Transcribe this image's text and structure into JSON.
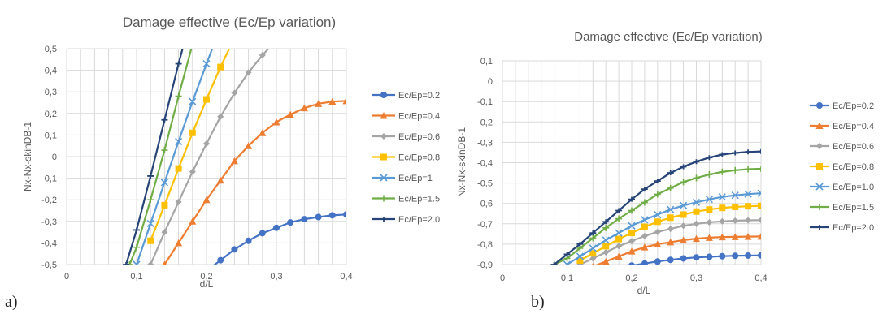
{
  "panel_labels": [
    "a)",
    "b)"
  ],
  "chart_data": [
    {
      "type": "line",
      "title": "Damage effective (Ec/Ep variation)",
      "xlabel": "d/L",
      "ylabel": "Nx-Nx-skinDB-1",
      "xlim": [
        0,
        0.4
      ],
      "ylim": [
        -0.5,
        0.5
      ],
      "x_ticks": [
        0,
        0.1,
        0.2,
        0.3,
        0.4
      ],
      "x_tick_labels": [
        "0",
        "0,1",
        "0,2",
        "0,3",
        "0,4"
      ],
      "y_ticks": [
        -0.5,
        -0.4,
        -0.3,
        -0.2,
        -0.1,
        0,
        0.1,
        0.2,
        0.3,
        0.4,
        0.5
      ],
      "y_tick_labels": [
        "-0,5",
        "-0,4",
        "-0,3",
        "-0,2",
        "-0,1",
        "0",
        "0,1",
        "0,2",
        "0,3",
        "0,4",
        "0,5"
      ],
      "grid": "both",
      "legend": "right",
      "series": [
        {
          "name": "Ec/Ep=0.2",
          "color": "#4472C4",
          "marker": "circle",
          "x": [
            0.2,
            0.22,
            0.24,
            0.26,
            0.28,
            0.3,
            0.32,
            0.34,
            0.36,
            0.38,
            0.4
          ],
          "y": [
            -0.53,
            -0.48,
            -0.43,
            -0.39,
            -0.355,
            -0.33,
            -0.305,
            -0.29,
            -0.28,
            -0.272,
            -0.268
          ]
        },
        {
          "name": "Ec/Ep=0.4",
          "color": "#ED7D31",
          "marker": "triangle",
          "x": [
            0.14,
            0.16,
            0.18,
            0.2,
            0.22,
            0.24,
            0.26,
            0.28,
            0.3,
            0.32,
            0.34,
            0.36,
            0.38,
            0.4
          ],
          "y": [
            -0.5,
            -0.4,
            -0.3,
            -0.2,
            -0.11,
            -0.02,
            0.05,
            0.11,
            0.16,
            0.195,
            0.225,
            0.245,
            0.255,
            0.258
          ]
        },
        {
          "name": "Ec/Ep=0.6",
          "color": "#A5A5A5",
          "marker": "diamond",
          "x": [
            0.12,
            0.14,
            0.16,
            0.18,
            0.2,
            0.22,
            0.24,
            0.26,
            0.28,
            0.3
          ],
          "y": [
            -0.5,
            -0.35,
            -0.21,
            -0.07,
            0.06,
            0.185,
            0.295,
            0.39,
            0.47,
            0.54
          ]
        },
        {
          "name": "Ec/Ep=0.8",
          "color": "#FFC000",
          "marker": "square",
          "x": [
            0.12,
            0.14,
            0.16,
            0.18,
            0.2,
            0.22,
            0.24
          ],
          "y": [
            -0.39,
            -0.225,
            -0.055,
            0.11,
            0.265,
            0.415,
            0.55
          ]
        },
        {
          "name": "Ec/Ep=1",
          "color": "#5B9BD5",
          "marker": "x",
          "x": [
            0.1,
            0.12,
            0.14,
            0.16,
            0.18,
            0.2,
            0.22
          ],
          "y": [
            -0.5,
            -0.31,
            -0.12,
            0.07,
            0.255,
            0.43,
            0.6
          ]
        },
        {
          "name": "Ec/Ep=1.5",
          "color": "#70AD47",
          "marker": "plus",
          "x": [
            0.09,
            0.1,
            0.12,
            0.14,
            0.16,
            0.18
          ],
          "y": [
            -0.5,
            -0.42,
            -0.2,
            0.03,
            0.28,
            0.52
          ]
        },
        {
          "name": "Ec/Ep=2.0",
          "color": "#264478",
          "marker": "dash",
          "x": [
            0.085,
            0.1,
            0.12,
            0.14,
            0.16,
            0.17
          ],
          "y": [
            -0.5,
            -0.34,
            -0.09,
            0.17,
            0.43,
            0.55
          ]
        }
      ]
    },
    {
      "type": "line",
      "title": "Damage effective (Ec/Ep variation)",
      "xlabel": "d/L",
      "ylabel": "Nx-Nx-skinDB-1",
      "xlim": [
        0,
        0.4
      ],
      "ylim": [
        -0.9,
        0.1
      ],
      "x_ticks": [
        0,
        0.1,
        0.2,
        0.3,
        0.4
      ],
      "x_tick_labels": [
        "0",
        "0,1",
        "0,2",
        "0,3",
        "0,4"
      ],
      "y_ticks": [
        -0.9,
        -0.8,
        -0.7,
        -0.6,
        -0.5,
        -0.4,
        -0.3,
        -0.2,
        -0.1,
        0,
        0.1
      ],
      "y_tick_labels": [
        "-0,9",
        "-0,8",
        "-0,7",
        "-0,6",
        "-0,5",
        "-0,4",
        "-0,3",
        "-0,2",
        "-0,1",
        "0",
        "0,1"
      ],
      "grid": "both",
      "legend": "right",
      "series": [
        {
          "name": "Ec/Ep=0.2",
          "color": "#4472C4",
          "marker": "circle",
          "x": [
            0.2,
            0.22,
            0.24,
            0.26,
            0.28,
            0.3,
            0.32,
            0.34,
            0.36,
            0.38,
            0.4
          ],
          "y": [
            -0.905,
            -0.895,
            -0.885,
            -0.877,
            -0.87,
            -0.865,
            -0.862,
            -0.859,
            -0.857,
            -0.856,
            -0.855
          ]
        },
        {
          "name": "Ec/Ep=0.4",
          "color": "#ED7D31",
          "marker": "triangle",
          "x": [
            0.14,
            0.16,
            0.18,
            0.2,
            0.22,
            0.24,
            0.26,
            0.28,
            0.3,
            0.32,
            0.34,
            0.36,
            0.38,
            0.4
          ],
          "y": [
            -0.91,
            -0.885,
            -0.86,
            -0.835,
            -0.815,
            -0.8,
            -0.79,
            -0.78,
            -0.773,
            -0.768,
            -0.765,
            -0.764,
            -0.763,
            -0.762
          ]
        },
        {
          "name": "Ec/Ep=0.6",
          "color": "#A5A5A5",
          "marker": "diamond",
          "x": [
            0.12,
            0.14,
            0.16,
            0.18,
            0.2,
            0.22,
            0.24,
            0.26,
            0.28,
            0.3,
            0.32,
            0.34,
            0.36,
            0.38,
            0.4
          ],
          "y": [
            -0.9,
            -0.87,
            -0.84,
            -0.81,
            -0.785,
            -0.76,
            -0.74,
            -0.725,
            -0.71,
            -0.7,
            -0.693,
            -0.688,
            -0.685,
            -0.683,
            -0.682
          ]
        },
        {
          "name": "Ec/Ep=0.8",
          "color": "#FFC000",
          "marker": "square",
          "x": [
            0.12,
            0.14,
            0.16,
            0.18,
            0.2,
            0.22,
            0.24,
            0.26,
            0.28,
            0.3,
            0.32,
            0.34,
            0.36,
            0.38,
            0.4
          ],
          "y": [
            -0.88,
            -0.845,
            -0.81,
            -0.775,
            -0.745,
            -0.715,
            -0.69,
            -0.67,
            -0.655,
            -0.64,
            -0.63,
            -0.622,
            -0.617,
            -0.614,
            -0.612
          ]
        },
        {
          "name": "Ec/Ep=1.0",
          "color": "#5B9BD5",
          "marker": "x",
          "x": [
            0.1,
            0.12,
            0.14,
            0.16,
            0.18,
            0.2,
            0.22,
            0.24,
            0.26,
            0.28,
            0.3,
            0.32,
            0.34,
            0.36,
            0.38,
            0.4
          ],
          "y": [
            -0.9,
            -0.86,
            -0.82,
            -0.78,
            -0.745,
            -0.71,
            -0.68,
            -0.655,
            -0.63,
            -0.61,
            -0.595,
            -0.58,
            -0.568,
            -0.56,
            -0.554,
            -0.55
          ]
        },
        {
          "name": "Ec/Ep=1.5",
          "color": "#70AD47",
          "marker": "plus",
          "x": [
            0.08,
            0.1,
            0.12,
            0.14,
            0.16,
            0.18,
            0.2,
            0.22,
            0.24,
            0.26,
            0.28,
            0.3,
            0.32,
            0.34,
            0.36,
            0.38,
            0.4
          ],
          "y": [
            -0.9,
            -0.87,
            -0.82,
            -0.77,
            -0.72,
            -0.675,
            -0.635,
            -0.595,
            -0.555,
            -0.525,
            -0.495,
            -0.475,
            -0.458,
            -0.445,
            -0.437,
            -0.432,
            -0.43
          ]
        },
        {
          "name": "Ec/Ep=2.0",
          "color": "#264478",
          "marker": "dash",
          "x": [
            0.08,
            0.1,
            0.12,
            0.14,
            0.16,
            0.18,
            0.2,
            0.22,
            0.24,
            0.26,
            0.28,
            0.3,
            0.32,
            0.34,
            0.36,
            0.38,
            0.4
          ],
          "y": [
            -0.9,
            -0.85,
            -0.8,
            -0.745,
            -0.69,
            -0.635,
            -0.58,
            -0.53,
            -0.49,
            -0.45,
            -0.42,
            -0.395,
            -0.375,
            -0.36,
            -0.352,
            -0.347,
            -0.345
          ]
        }
      ]
    }
  ]
}
